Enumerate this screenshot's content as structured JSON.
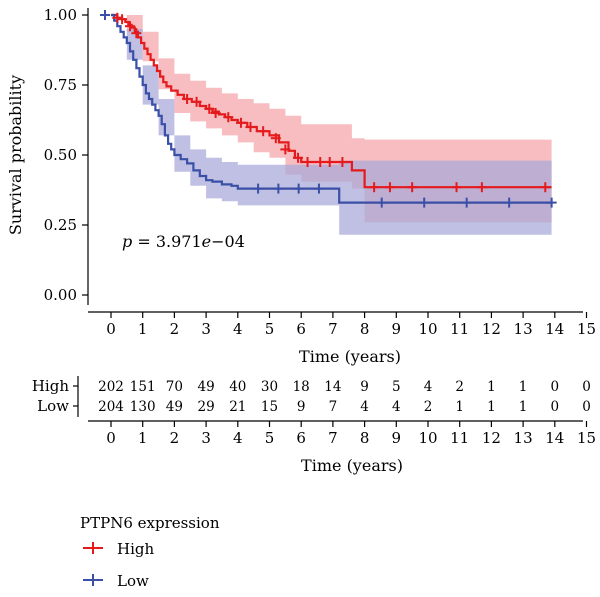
{
  "chart_data": {
    "type": "line",
    "subtype": "kaplan-meier",
    "title": "",
    "xlabel": "Time (years)",
    "ylabel": "Survival probability",
    "xlim": [
      0,
      15
    ],
    "ylim": [
      0,
      1
    ],
    "x_ticks": [
      0,
      1,
      2,
      3,
      4,
      5,
      6,
      7,
      8,
      9,
      10,
      11,
      12,
      13,
      14,
      15
    ],
    "y_ticks": [
      "0.00",
      "0.25",
      "0.50",
      "0.75",
      "1.00"
    ],
    "grid": false,
    "p_value": {
      "prefix": "p",
      "text": " = 3.971",
      "e": "e",
      "exp": "−04"
    },
    "series": [
      {
        "name": "High",
        "color": "#e41a1c",
        "band_color": "#f4a3a8",
        "steps": [
          [
            0,
            1.0
          ],
          [
            0.1,
            1.0
          ],
          [
            0.2,
            0.99
          ],
          [
            0.35,
            0.985
          ],
          [
            0.45,
            0.975
          ],
          [
            0.55,
            0.965
          ],
          [
            0.65,
            0.955
          ],
          [
            0.75,
            0.94
          ],
          [
            0.85,
            0.92
          ],
          [
            0.95,
            0.9
          ],
          [
            1.05,
            0.88
          ],
          [
            1.15,
            0.86
          ],
          [
            1.25,
            0.84
          ],
          [
            1.35,
            0.82
          ],
          [
            1.45,
            0.8
          ],
          [
            1.55,
            0.78
          ],
          [
            1.65,
            0.76
          ],
          [
            1.75,
            0.745
          ],
          [
            1.9,
            0.73
          ],
          [
            2.1,
            0.715
          ],
          [
            2.3,
            0.7
          ],
          [
            2.55,
            0.69
          ],
          [
            2.8,
            0.675
          ],
          [
            3.0,
            0.665
          ],
          [
            3.2,
            0.655
          ],
          [
            3.4,
            0.645
          ],
          [
            3.6,
            0.635
          ],
          [
            3.8,
            0.625
          ],
          [
            4.0,
            0.615
          ],
          [
            4.3,
            0.6
          ],
          [
            4.6,
            0.585
          ],
          [
            5.0,
            0.57
          ],
          [
            5.3,
            0.545
          ],
          [
            5.6,
            0.515
          ],
          [
            5.8,
            0.49
          ],
          [
            6.0,
            0.475
          ],
          [
            7.6,
            0.475
          ],
          [
            7.6,
            0.445
          ],
          [
            8.0,
            0.445
          ],
          [
            8.0,
            0.385
          ],
          [
            13.9,
            0.385
          ]
        ],
        "lower": [
          [
            0,
            1.0
          ],
          [
            0.5,
            0.94
          ],
          [
            1.0,
            0.835
          ],
          [
            1.5,
            0.735
          ],
          [
            2.0,
            0.65
          ],
          [
            2.5,
            0.62
          ],
          [
            3.0,
            0.595
          ],
          [
            3.5,
            0.57
          ],
          [
            4.0,
            0.545
          ],
          [
            4.5,
            0.51
          ],
          [
            5.0,
            0.49
          ],
          [
            5.5,
            0.43
          ],
          [
            6.0,
            0.405
          ],
          [
            7.6,
            0.38
          ],
          [
            8.0,
            0.26
          ],
          [
            13.9,
            0.26
          ]
        ],
        "upper": [
          [
            0,
            1.0
          ],
          [
            0.5,
            1.0
          ],
          [
            1.0,
            0.94
          ],
          [
            1.5,
            0.845
          ],
          [
            2.0,
            0.79
          ],
          [
            2.5,
            0.765
          ],
          [
            3.0,
            0.74
          ],
          [
            3.5,
            0.72
          ],
          [
            4.0,
            0.7
          ],
          [
            4.5,
            0.685
          ],
          [
            5.0,
            0.665
          ],
          [
            5.5,
            0.64
          ],
          [
            6.0,
            0.61
          ],
          [
            7.6,
            0.56
          ],
          [
            8.0,
            0.555
          ],
          [
            13.9,
            0.555
          ]
        ],
        "censors": [
          [
            0.2,
            0.99
          ],
          [
            0.35,
            0.985
          ],
          [
            0.6,
            0.96
          ],
          [
            0.8,
            0.935
          ],
          [
            2.4,
            0.7
          ],
          [
            2.7,
            0.69
          ],
          [
            3.1,
            0.665
          ],
          [
            3.3,
            0.65
          ],
          [
            3.7,
            0.635
          ],
          [
            4.1,
            0.615
          ],
          [
            4.4,
            0.6
          ],
          [
            4.8,
            0.585
          ],
          [
            5.2,
            0.56
          ],
          [
            5.5,
            0.52
          ],
          [
            5.9,
            0.49
          ],
          [
            6.2,
            0.475
          ],
          [
            6.6,
            0.475
          ],
          [
            6.9,
            0.475
          ],
          [
            7.3,
            0.475
          ],
          [
            8.3,
            0.385
          ],
          [
            8.8,
            0.385
          ],
          [
            9.5,
            0.385
          ],
          [
            10.9,
            0.385
          ],
          [
            11.7,
            0.385
          ],
          [
            13.7,
            0.385
          ]
        ]
      },
      {
        "name": "Low",
        "color": "#3a4fa6",
        "band_color": "#a6a8d8",
        "steps": [
          [
            0,
            1.0
          ],
          [
            0.1,
            0.98
          ],
          [
            0.2,
            0.96
          ],
          [
            0.3,
            0.94
          ],
          [
            0.4,
            0.92
          ],
          [
            0.5,
            0.9
          ],
          [
            0.6,
            0.87
          ],
          [
            0.7,
            0.84
          ],
          [
            0.8,
            0.81
          ],
          [
            0.9,
            0.78
          ],
          [
            1.0,
            0.75
          ],
          [
            1.1,
            0.72
          ],
          [
            1.2,
            0.7
          ],
          [
            1.3,
            0.68
          ],
          [
            1.4,
            0.66
          ],
          [
            1.5,
            0.64
          ],
          [
            1.6,
            0.61
          ],
          [
            1.7,
            0.57
          ],
          [
            1.8,
            0.54
          ],
          [
            1.9,
            0.52
          ],
          [
            2.0,
            0.5
          ],
          [
            2.2,
            0.485
          ],
          [
            2.4,
            0.47
          ],
          [
            2.6,
            0.445
          ],
          [
            2.8,
            0.425
          ],
          [
            3.0,
            0.41
          ],
          [
            3.2,
            0.405
          ],
          [
            3.5,
            0.395
          ],
          [
            3.8,
            0.39
          ],
          [
            4.0,
            0.38
          ],
          [
            7.2,
            0.38
          ],
          [
            7.2,
            0.33
          ],
          [
            13.9,
            0.33
          ]
        ],
        "lower": [
          [
            0,
            1.0
          ],
          [
            0.5,
            0.84
          ],
          [
            1.0,
            0.68
          ],
          [
            1.5,
            0.57
          ],
          [
            2.0,
            0.44
          ],
          [
            2.5,
            0.39
          ],
          [
            3.0,
            0.345
          ],
          [
            3.5,
            0.335
          ],
          [
            4.0,
            0.32
          ],
          [
            7.2,
            0.31
          ],
          [
            7.2,
            0.215
          ],
          [
            13.9,
            0.215
          ]
        ],
        "upper": [
          [
            0,
            1.0
          ],
          [
            0.5,
            0.95
          ],
          [
            1.0,
            0.82
          ],
          [
            1.5,
            0.7
          ],
          [
            2.0,
            0.57
          ],
          [
            2.5,
            0.52
          ],
          [
            3.0,
            0.49
          ],
          [
            3.5,
            0.475
          ],
          [
            4.0,
            0.465
          ],
          [
            7.2,
            0.46
          ],
          [
            7.2,
            0.48
          ],
          [
            13.9,
            0.48
          ]
        ]
      }
    ],
    "risk_table": {
      "rows": [
        {
          "name": "High",
          "counts": [
            "202",
            "151",
            "70",
            "49",
            "40",
            "30",
            "18",
            "14",
            "9",
            "5",
            "4",
            "2",
            "1",
            "1",
            "0",
            "0"
          ]
        },
        {
          "name": "Low",
          "counts": [
            "204",
            "130",
            "49",
            "29",
            "21",
            "15",
            "9",
            "7",
            "4",
            "4",
            "2",
            "1",
            "1",
            "1",
            "0",
            "0"
          ]
        }
      ],
      "xlabel": "Time (years)"
    },
    "legend": {
      "title": "PTPN6 expression",
      "entries": [
        "High",
        "Low"
      ],
      "placement": "bottom-left"
    }
  }
}
